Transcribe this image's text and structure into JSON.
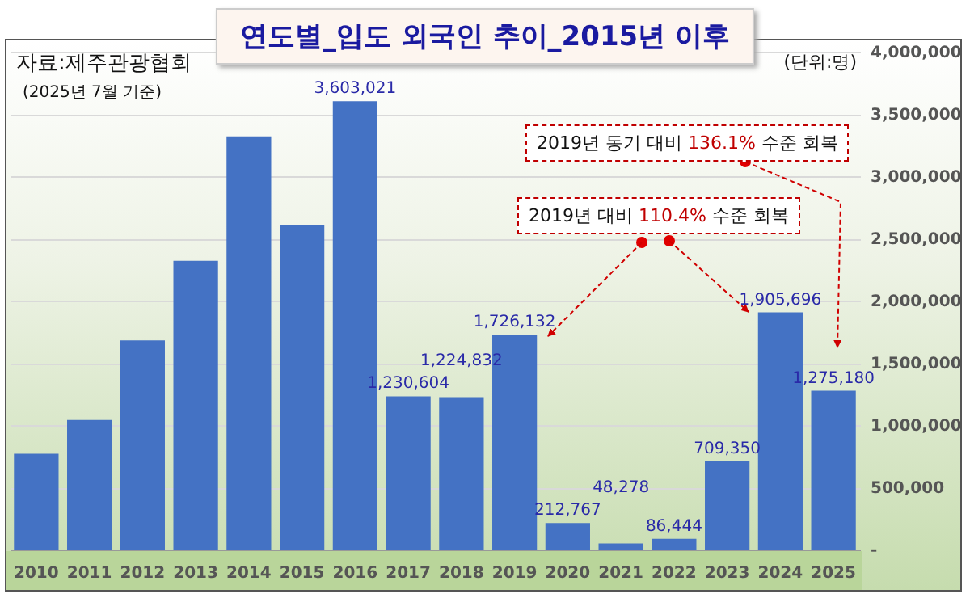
{
  "chart_data": {
    "type": "bar",
    "title": "연도별_입도 외국인 추이_2015년 이후",
    "categories": [
      "2010",
      "2011",
      "2012",
      "2013",
      "2014",
      "2015",
      "2016",
      "2017",
      "2018",
      "2019",
      "2020",
      "2021",
      "2022",
      "2023",
      "2024",
      "2025"
    ],
    "values": [
      770000,
      1040000,
      1680000,
      2320000,
      3320000,
      2610000,
      3603021,
      1230604,
      1224832,
      1726132,
      212767,
      48278,
      86444,
      709350,
      1905696,
      1275180
    ],
    "value_labels": [
      null,
      null,
      null,
      null,
      null,
      null,
      "3,603,021",
      "1,230,604",
      "1,224,832",
      "1,726,132",
      "212,767",
      "48,278",
      "86,444",
      "709,350",
      "1,905,696",
      "1,275,180"
    ],
    "color": "#4472c4",
    "ylim": [
      0,
      4000000
    ],
    "yticks": [
      {
        "value": 0,
        "label": "-"
      },
      {
        "value": 500000,
        "label": "500,000"
      },
      {
        "value": 1000000,
        "label": "1,000,000"
      },
      {
        "value": 1500000,
        "label": "1,500,000"
      },
      {
        "value": 2000000,
        "label": "2,000,000"
      },
      {
        "value": 2500000,
        "label": "2,500,000"
      },
      {
        "value": 3000000,
        "label": "3,000,000"
      },
      {
        "value": 3500000,
        "label": "3,500,000"
      },
      {
        "value": 4000000,
        "label": "4,000,000"
      }
    ],
    "grid": "y",
    "annotations": [
      "자료:제주관광협회",
      "(2025년 7월 기준)",
      "(단위:명)",
      "2019년 동기 대비 136.1% 수준 회복",
      "2019년 대비 110.4% 수준 회복"
    ]
  }
}
